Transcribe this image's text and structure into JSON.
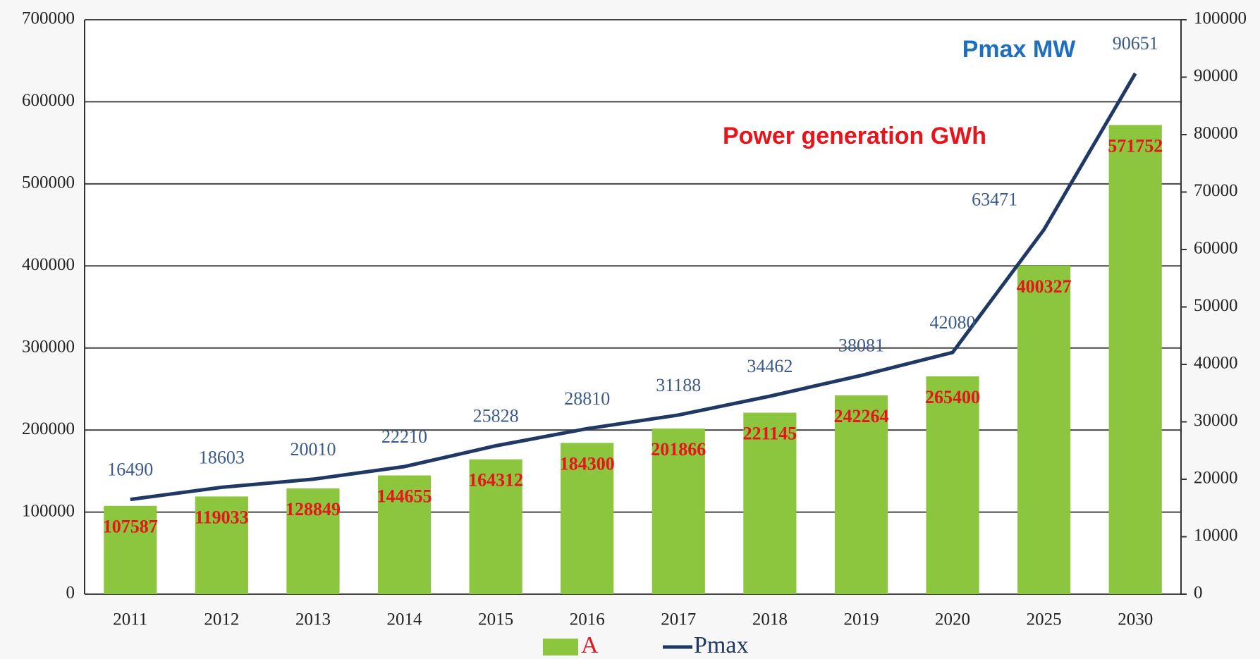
{
  "chart_data": {
    "type": "bar",
    "categories": [
      "2011",
      "2012",
      "2013",
      "2014",
      "2015",
      "2016",
      "2017",
      "2018",
      "2019",
      "2020",
      "2025",
      "2030"
    ],
    "series": [
      {
        "name": "A",
        "type": "bar",
        "color": "#8cc63e",
        "label_color": "#e8141c",
        "values": [
          107587,
          119033,
          128849,
          144655,
          164312,
          184300,
          201866,
          221145,
          242264,
          265400,
          400327,
          571752
        ]
      },
      {
        "name": "Pmax",
        "type": "line",
        "axis": "y2",
        "color": "#1f3864",
        "label_color": "#3a5a8c",
        "values": [
          16490,
          18603,
          20010,
          22210,
          25828,
          28810,
          31188,
          34462,
          38081,
          42080,
          63471,
          90651
        ]
      }
    ],
    "ylim": [
      0,
      700000
    ],
    "yticks": [
      0,
      100000,
      200000,
      300000,
      400000,
      500000,
      600000,
      700000
    ],
    "y2lim": [
      0,
      100000
    ],
    "y2ticks": [
      0,
      10000,
      20000,
      30000,
      40000,
      50000,
      60000,
      70000,
      80000,
      90000,
      100000
    ],
    "grid": true,
    "annotations": [
      {
        "text": "Pmax MW",
        "color": "#1f6fc0"
      },
      {
        "text": "Power generation GWh",
        "color": "#e8141c"
      }
    ]
  }
}
